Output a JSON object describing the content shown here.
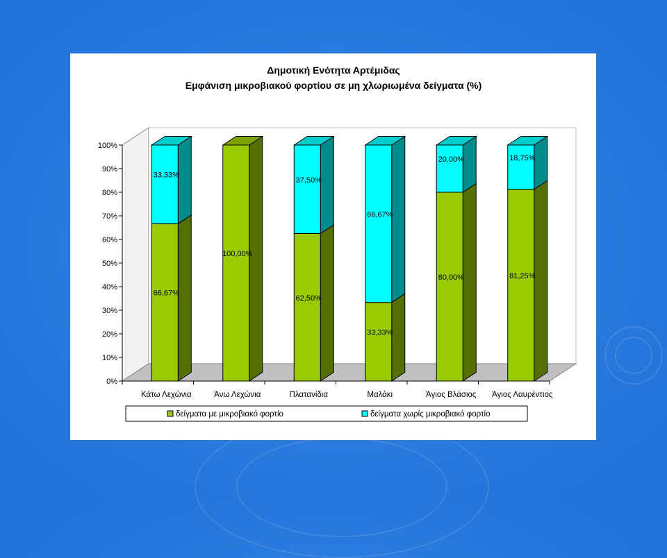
{
  "chart_data": {
    "type": "bar",
    "stacked": true,
    "percent_stacked": true,
    "three_d": true,
    "title": "Δημοτική Ενότητα Αρτέμιδας",
    "subtitle": "Εμφάνιση μικροβιακού φορτίου σε μη χλωριωμένα δείγματα (%)",
    "categories": [
      "Κάτω Λεχώνια",
      "Άνω Λεχώνια",
      "Πλατανίδια",
      "Μαλάκι",
      "Άγιος Βλάσιος",
      "Άγιος Λαυρέντιος"
    ],
    "series": [
      {
        "name": "δείγματα με μικροβιακό φορτίο",
        "color": "#99cc00",
        "values": [
          66.67,
          100,
          62.5,
          33.33,
          80,
          81.25
        ],
        "labels": [
          "66,67%",
          "100,00%",
          "62,50%",
          "33,33%",
          "80,00%",
          "81,25%"
        ]
      },
      {
        "name": "δείγματα χωρίς μικροβιακό φορτίο",
        "color": "#00ffff",
        "values": [
          33.33,
          0,
          37.5,
          66.67,
          20,
          18.75
        ],
        "labels": [
          "33,33%",
          "",
          "37,50%",
          "66,67%",
          "20,00%",
          "18,75%"
        ]
      }
    ],
    "y_ticks": [
      "0%",
      "10%",
      "20%",
      "30%",
      "40%",
      "50%",
      "60%",
      "70%",
      "80%",
      "90%",
      "100%"
    ],
    "ylim": [
      0,
      100
    ],
    "legend_position": "bottom",
    "grid": false
  }
}
